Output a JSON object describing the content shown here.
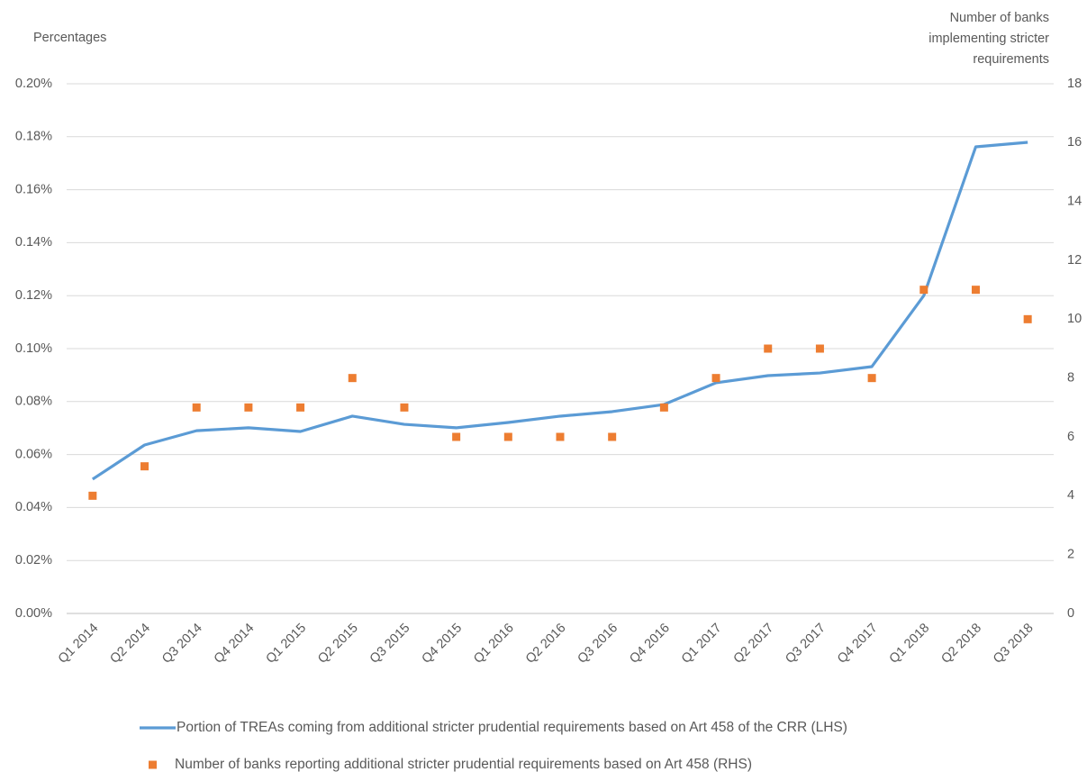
{
  "chart_data": {
    "type": "line",
    "ylabel": "Percentages",
    "y2label": [
      "Number of banks",
      "implementing stricter",
      "requirements"
    ],
    "categories": [
      "Q1 2014",
      "Q2 2014",
      "Q3 2014",
      "Q4 2014",
      "Q1 2015",
      "Q2 2015",
      "Q3 2015",
      "Q4 2015",
      "Q1 2016",
      "Q2 2016",
      "Q3 2016",
      "Q4 2016",
      "Q1 2017",
      "Q2 2017",
      "Q3 2017",
      "Q4 2017",
      "Q1 2018",
      "Q2 2018",
      "Q3 2018"
    ],
    "series": [
      {
        "name": "Portion of TREAs coming from additional stricter prudential requirements based on Art 458 of the CRR (LHS)",
        "type": "line",
        "color": "#5b9bd5",
        "values": [
          0.0507,
          0.0636,
          0.069,
          0.0701,
          0.0687,
          0.0745,
          0.0714,
          0.0701,
          0.0721,
          0.0745,
          0.0762,
          0.0789,
          0.0871,
          0.0898,
          0.0908,
          0.0932,
          0.12,
          0.1762,
          0.1779
        ]
      },
      {
        "name": "Number of banks reporting additional stricter prudential requirements based on Art 458 (RHS)",
        "type": "scatter",
        "axis": "y2",
        "color": "#ed7d31",
        "values": [
          4,
          5,
          7,
          7,
          7,
          8,
          7,
          6,
          6,
          6,
          6,
          7,
          8,
          9,
          9,
          8,
          11,
          11,
          10
        ]
      }
    ],
    "ylim": [
      0,
      0.2
    ],
    "yticks": [
      {
        "value": 0,
        "label": "0.00%"
      },
      {
        "value": 0.02,
        "label": "0.02%"
      },
      {
        "value": 0.04,
        "label": "0.04%"
      },
      {
        "value": 0.06,
        "label": "0.06%"
      },
      {
        "value": 0.08,
        "label": "0.08%"
      },
      {
        "value": 0.1,
        "label": "0.10%"
      },
      {
        "value": 0.12,
        "label": "0.12%"
      },
      {
        "value": 0.14,
        "label": "0.14%"
      },
      {
        "value": 0.16,
        "label": "0.16%"
      },
      {
        "value": 0.18,
        "label": "0.18%"
      },
      {
        "value": 0.2,
        "label": "0.20%"
      }
    ],
    "y2lim": [
      0,
      18
    ],
    "y2ticks": [
      0,
      2,
      4,
      6,
      8,
      10,
      12,
      14,
      16,
      18
    ],
    "grid": true
  }
}
